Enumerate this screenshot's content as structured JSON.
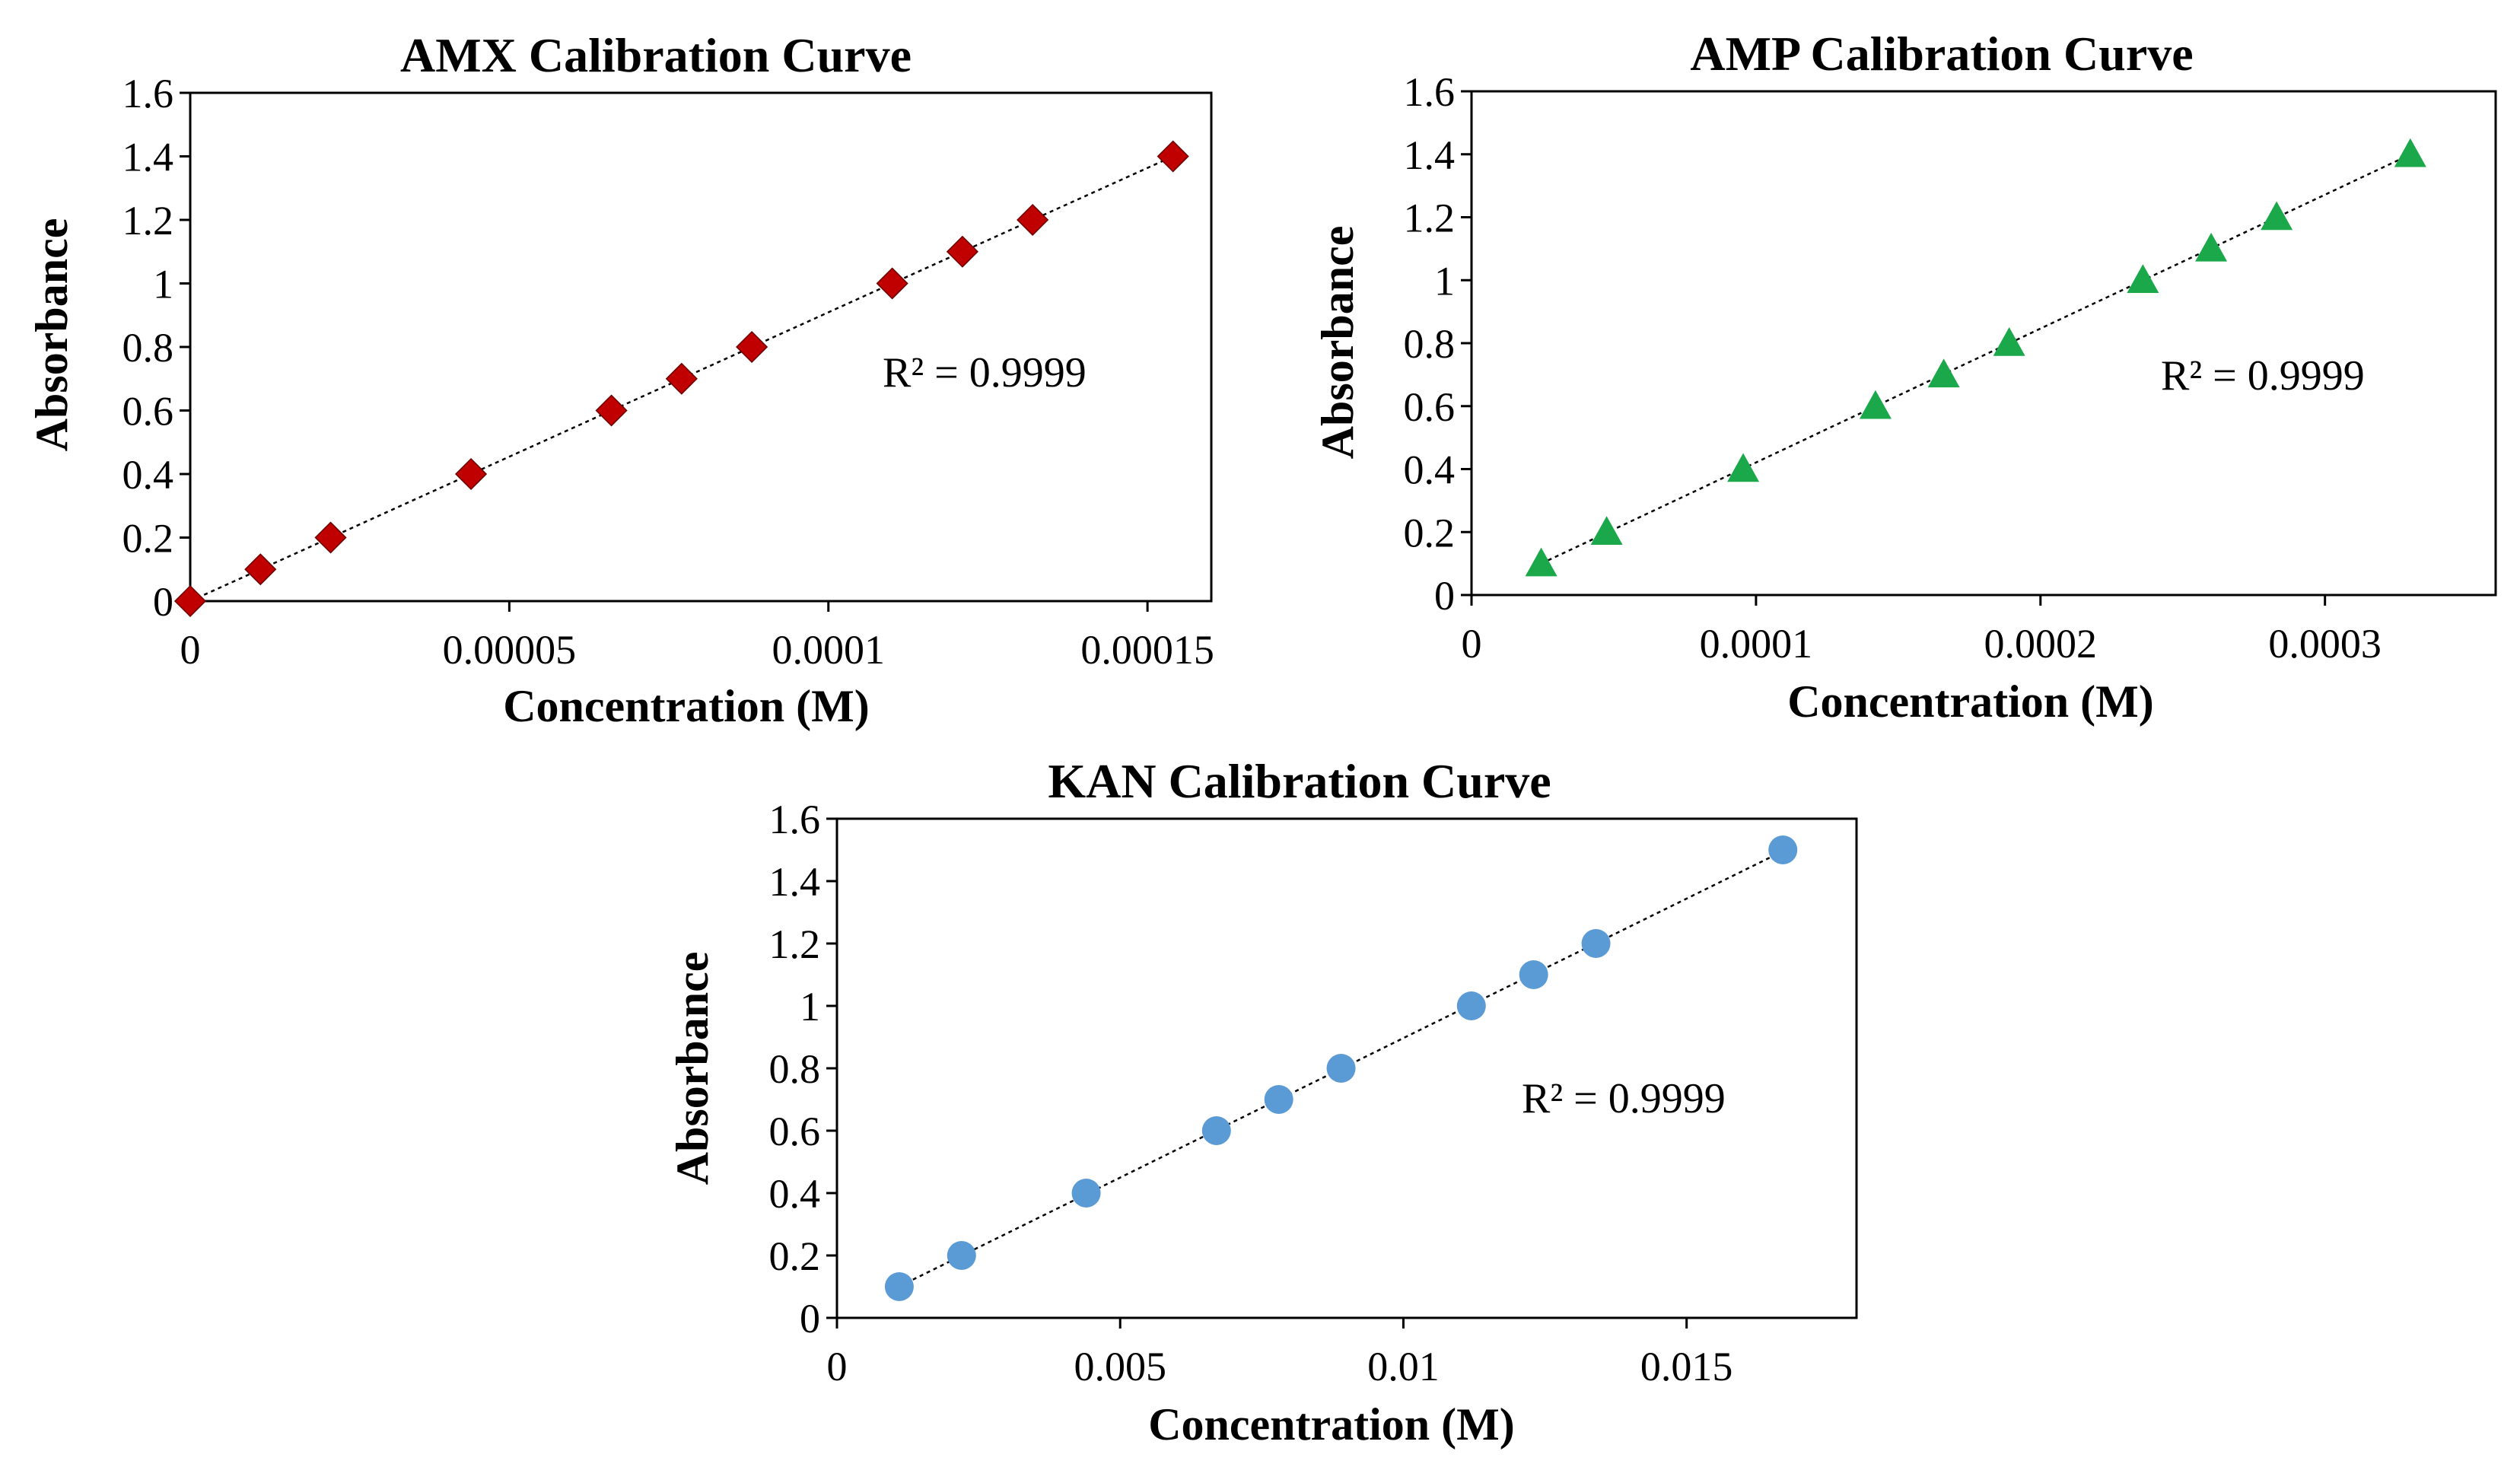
{
  "figure_title": "",
  "chart_data": [
    {
      "id": "amx",
      "type": "scatter",
      "title": "AMX Calibration Curve",
      "xlabel": "Concentration (M)",
      "ylabel": "Absorbance",
      "xlim": [
        0,
        0.00016
      ],
      "ylim": [
        0,
        1.6
      ],
      "xticks": [
        0,
        5e-05,
        0.0001,
        0.00015
      ],
      "xtick_labels": [
        "0",
        "0.00005",
        "0.0001",
        "0.00015"
      ],
      "yticks": [
        0,
        0.2,
        0.4,
        0.6,
        0.8,
        1,
        1.2,
        1.4,
        1.6
      ],
      "ytick_labels": [
        "0",
        "0.2",
        "0.4",
        "0.6",
        "0.8",
        "1",
        "1.2",
        "1.4",
        "1.6"
      ],
      "marker": "diamond",
      "color": "#c00000",
      "series": [
        {
          "name": "AMX",
          "x": [
            0,
            1.1e-05,
            2.2e-05,
            4.4e-05,
            6.6e-05,
            7.7e-05,
            8.8e-05,
            0.00011,
            0.000121,
            0.000132,
            0.000154
          ],
          "y": [
            0,
            0.1,
            0.2,
            0.4,
            0.6,
            0.7,
            0.8,
            1.0,
            1.1,
            1.2,
            1.4
          ]
        }
      ],
      "trendline": {
        "type": "linear",
        "style": "dotted",
        "x_range": [
          0,
          0.000154
        ]
      },
      "annotation": "R² = 0.9999"
    },
    {
      "id": "amp",
      "type": "scatter",
      "title": "AMP Calibration Curve",
      "xlabel": "Concentration (M)",
      "ylabel": "Absorbance",
      "xlim": [
        0,
        0.00036
      ],
      "ylim": [
        0,
        1.6
      ],
      "xticks": [
        0,
        0.0001,
        0.0002,
        0.0003
      ],
      "xtick_labels": [
        "0",
        "0.0001",
        "0.0002",
        "0.0003"
      ],
      "yticks": [
        0,
        0.2,
        0.4,
        0.6,
        0.8,
        1,
        1.2,
        1.4,
        1.6
      ],
      "ytick_labels": [
        "0",
        "0.2",
        "0.4",
        "0.6",
        "0.8",
        "1",
        "1.2",
        "1.4",
        "1.6"
      ],
      "marker": "triangle",
      "color": "#1aa84a",
      "series": [
        {
          "name": "AMP",
          "x": [
            2.45e-05,
            4.75e-05,
            9.55e-05,
            0.000142,
            0.000166,
            0.000189,
            0.000236,
            0.00026,
            0.000283,
            0.00033
          ],
          "y": [
            0.1,
            0.2,
            0.4,
            0.6,
            0.7,
            0.8,
            1.0,
            1.1,
            1.2,
            1.4
          ]
        }
      ],
      "trendline": {
        "type": "linear",
        "style": "dotted",
        "x_range": [
          2.45e-05,
          0.00033
        ]
      },
      "annotation": "R² = 0.9999"
    },
    {
      "id": "kan",
      "type": "scatter",
      "title": "KAN Calibration Curve",
      "xlabel": "Concentration (M)",
      "ylabel": "Absorbance",
      "xlim": [
        0,
        0.018
      ],
      "ylim": [
        0,
        1.6
      ],
      "xticks": [
        0,
        0.005,
        0.01,
        0.015
      ],
      "xtick_labels": [
        "0",
        "0.005",
        "0.01",
        "0.015"
      ],
      "yticks": [
        0,
        0.2,
        0.4,
        0.6,
        0.8,
        1,
        1.2,
        1.4,
        1.6
      ],
      "ytick_labels": [
        "0",
        "0.2",
        "0.4",
        "0.6",
        "0.8",
        "1",
        "1.2",
        "1.4",
        "1.6"
      ],
      "marker": "circle",
      "color": "#5b9bd5",
      "series": [
        {
          "name": "KAN",
          "x": [
            0.0011,
            0.0022,
            0.0044,
            0.0067,
            0.0078,
            0.0089,
            0.0112,
            0.0123,
            0.0134,
            0.0167
          ],
          "y": [
            0.1,
            0.2,
            0.4,
            0.6,
            0.7,
            0.8,
            1.0,
            1.1,
            1.2,
            1.5
          ]
        }
      ],
      "trendline": {
        "type": "linear",
        "style": "dotted",
        "x_range": [
          0.0011,
          0.0167
        ]
      },
      "annotation": "R² = 0.9999"
    }
  ]
}
